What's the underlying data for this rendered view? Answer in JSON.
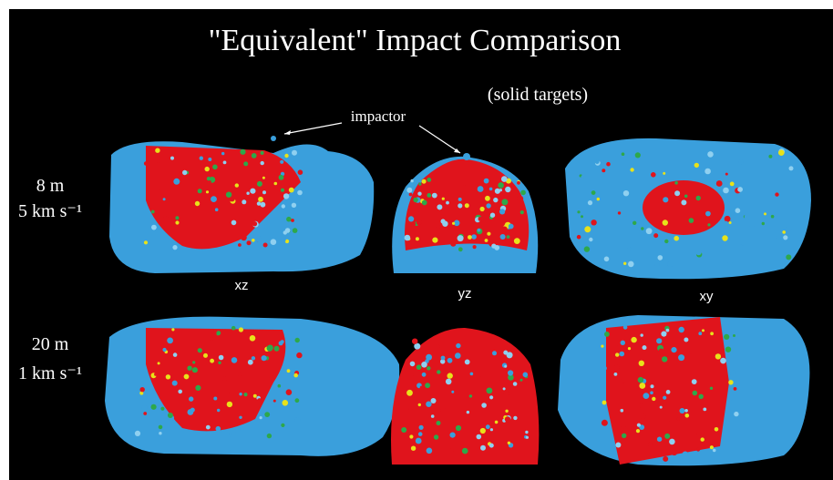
{
  "title": "\"Equivalent\" Impact Comparison",
  "subtitle": "(solid targets)",
  "annotation": "impactor",
  "rows": [
    {
      "size": "8 m",
      "speed": "5 km s⁻¹"
    },
    {
      "size": "20 m",
      "speed": "1 km s⁻¹"
    }
  ],
  "views": [
    "xz",
    "yz",
    "xy"
  ]
}
